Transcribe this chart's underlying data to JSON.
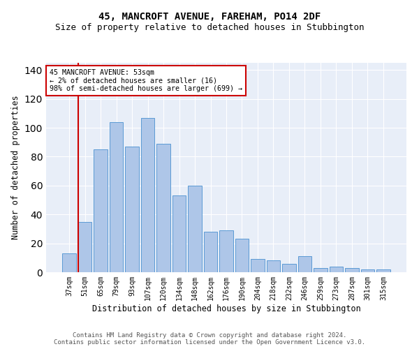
{
  "title": "45, MANCROFT AVENUE, FAREHAM, PO14 2DF",
  "subtitle": "Size of property relative to detached houses in Stubbington",
  "xlabel": "Distribution of detached houses by size in Stubbington",
  "ylabel": "Number of detached properties",
  "categories": [
    "37sqm",
    "51sqm",
    "65sqm",
    "79sqm",
    "93sqm",
    "107sqm",
    "120sqm",
    "134sqm",
    "148sqm",
    "162sqm",
    "176sqm",
    "190sqm",
    "204sqm",
    "218sqm",
    "232sqm",
    "246sqm",
    "259sqm",
    "273sqm",
    "287sqm",
    "301sqm",
    "315sqm"
  ],
  "values": [
    13,
    35,
    85,
    104,
    87,
    107,
    89,
    53,
    60,
    28,
    29,
    23,
    9,
    8,
    6,
    11,
    3,
    4,
    3,
    2,
    2
  ],
  "bar_color": "#aec6e8",
  "bar_edge_color": "#5b9bd5",
  "highlight_color": "#cc0000",
  "annotation_text": "45 MANCROFT AVENUE: 53sqm\n← 2% of detached houses are smaller (16)\n98% of semi-detached houses are larger (699) →",
  "annotation_box_color": "#ffffff",
  "annotation_box_edge_color": "#cc0000",
  "ylim": [
    0,
    145
  ],
  "footer1": "Contains HM Land Registry data © Crown copyright and database right 2024.",
  "footer2": "Contains public sector information licensed under the Open Government Licence v3.0.",
  "background_color": "#e8eef8",
  "grid_color": "#ffffff",
  "title_fontsize": 10,
  "subtitle_fontsize": 9,
  "axis_label_fontsize": 8.5,
  "tick_fontsize": 7,
  "footer_fontsize": 6.5
}
